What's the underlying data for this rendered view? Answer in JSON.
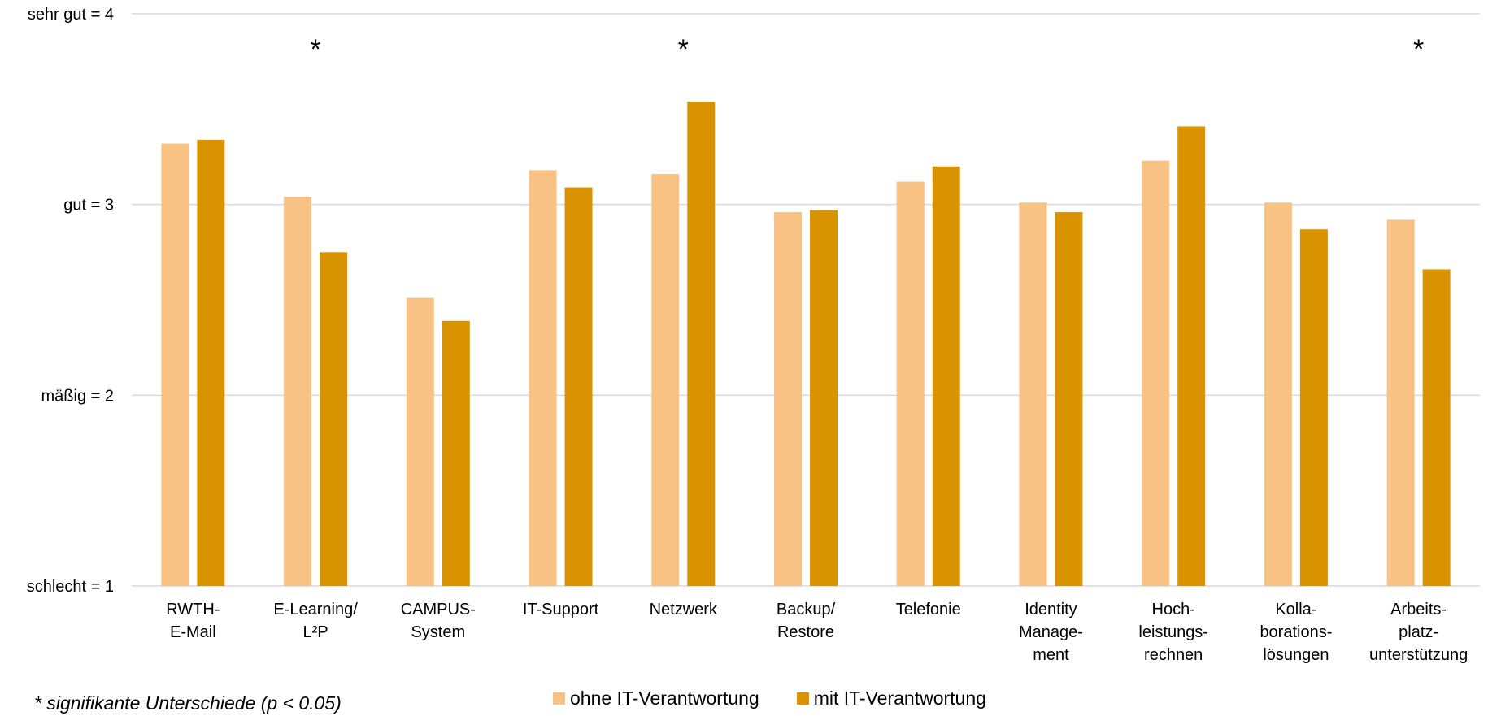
{
  "chart_data": {
    "type": "bar",
    "categories": [
      [
        "RWTH-",
        "E-Mail"
      ],
      [
        "E-Learning/",
        "L²P"
      ],
      [
        "CAMPUS-",
        "System"
      ],
      [
        "IT-Support"
      ],
      [
        "Netzwerk"
      ],
      [
        "Backup/",
        "Restore"
      ],
      [
        "Telefonie"
      ],
      [
        "Identity",
        "Manage-",
        "ment"
      ],
      [
        "Hoch-",
        "leistungs-",
        "rechnen"
      ],
      [
        "Kolla-",
        "borations-",
        "lösungen"
      ],
      [
        "Arbeits-",
        "platz-",
        "unterstützung"
      ]
    ],
    "series": [
      {
        "name": "ohne IT-Verantwortung",
        "color": "#F7C284",
        "values": [
          3.32,
          3.04,
          2.51,
          3.18,
          3.16,
          2.96,
          3.12,
          3.01,
          3.23,
          3.01,
          2.92
        ]
      },
      {
        "name": "mit IT-Verantwortung",
        "color": "#DA9300",
        "values": [
          3.34,
          2.75,
          2.39,
          3.09,
          3.54,
          2.97,
          3.2,
          2.96,
          3.41,
          2.87,
          2.66
        ]
      }
    ],
    "yticks": [
      {
        "value": 1,
        "label": "schlecht = 1"
      },
      {
        "value": 2,
        "label": "mäßig = 2"
      },
      {
        "value": 3,
        "label": "gut = 3"
      },
      {
        "value": 4,
        "label": "sehr gut = 4"
      }
    ],
    "ylim": [
      1,
      4
    ],
    "grid": true,
    "significance_marker": "*",
    "significant_categories": [
      1,
      4,
      10
    ],
    "legend_position": "bottom"
  },
  "footnote": "* signifikante Unterschiede (p < 0.05)"
}
